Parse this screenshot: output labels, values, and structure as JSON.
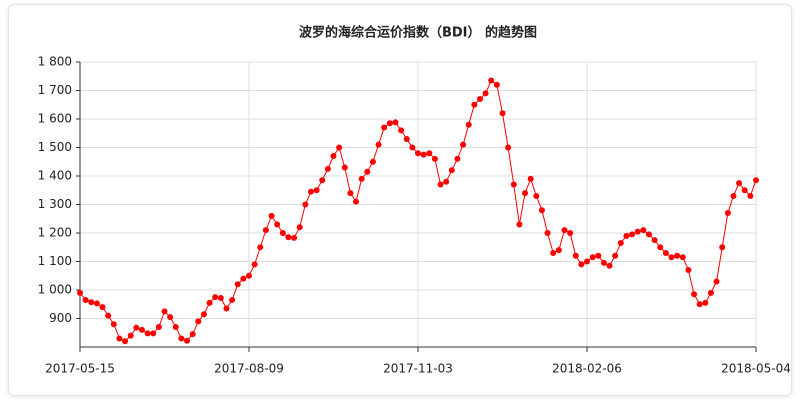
{
  "chart_data": {
    "type": "line",
    "title": "波罗的海综合运价指数（BDI） 的趋势图",
    "categories": [
      "2017-05-15",
      null,
      null,
      null,
      null,
      null,
      null,
      null,
      null,
      null,
      null,
      null,
      null,
      null,
      null,
      null,
      null,
      null,
      null,
      null,
      null,
      null,
      null,
      null,
      null,
      null,
      null,
      null,
      null,
      null,
      "2017-08-09",
      null,
      null,
      null,
      null,
      null,
      null,
      null,
      null,
      null,
      null,
      null,
      null,
      null,
      null,
      null,
      null,
      null,
      null,
      null,
      null,
      null,
      null,
      null,
      null,
      null,
      null,
      null,
      null,
      null,
      "2017-11-03",
      null,
      null,
      null,
      null,
      null,
      null,
      null,
      null,
      null,
      null,
      null,
      null,
      null,
      null,
      null,
      null,
      null,
      null,
      null,
      null,
      null,
      null,
      null,
      null,
      null,
      null,
      null,
      null,
      null,
      "2018-02-06",
      null,
      null,
      null,
      null,
      null,
      null,
      null,
      null,
      null,
      null,
      null,
      null,
      null,
      null,
      null,
      null,
      null,
      null,
      null,
      null,
      null,
      null,
      null,
      null,
      null,
      null,
      null,
      null,
      null,
      "2018-05-04"
    ],
    "series": [
      {
        "name": "BDI",
        "color": "#ff0000",
        "values": [
          990,
          965,
          957,
          953,
          940,
          910,
          880,
          830,
          820,
          840,
          868,
          860,
          848,
          848,
          870,
          925,
          905,
          870,
          830,
          822,
          845,
          890,
          915,
          955,
          975,
          972,
          935,
          965,
          1020,
          1040,
          1050,
          1090,
          1150,
          1210,
          1260,
          1230,
          1200,
          1185,
          1183,
          1220,
          1300,
          1345,
          1350,
          1385,
          1425,
          1470,
          1500,
          1430,
          1340,
          1310,
          1390,
          1415,
          1450,
          1510,
          1570,
          1585,
          1588,
          1560,
          1530,
          1500,
          1480,
          1475,
          1480,
          1460,
          1370,
          1380,
          1420,
          1460,
          1510,
          1580,
          1650,
          1670,
          1690,
          1735,
          1720,
          1620,
          1500,
          1370,
          1230,
          1340,
          1390,
          1330,
          1280,
          1200,
          1130,
          1140,
          1210,
          1200,
          1120,
          1090,
          1100,
          1115,
          1120,
          1095,
          1085,
          1120,
          1165,
          1190,
          1195,
          1205,
          1210,
          1195,
          1175,
          1150,
          1130,
          1115,
          1120,
          1115,
          1070,
          985,
          950,
          955,
          990,
          1030,
          1150,
          1270,
          1330,
          1375,
          1350,
          1330,
          1385
        ]
      }
    ],
    "ylim": [
      800,
      1800
    ],
    "yticks": [
      900,
      {
        "value": 1000,
        "label": "1 000"
      },
      {
        "value": 1100,
        "label": "1 100"
      },
      {
        "value": 1200,
        "label": "1 200"
      },
      {
        "value": 1300,
        "label": "1 300"
      },
      {
        "value": 1400,
        "label": "1 400"
      },
      {
        "value": 1500,
        "label": "1 500"
      },
      {
        "value": 1600,
        "label": "1 600"
      },
      {
        "value": 1700,
        "label": "1 700"
      },
      {
        "value": 1800,
        "label": "1 800"
      }
    ],
    "grid": true
  }
}
